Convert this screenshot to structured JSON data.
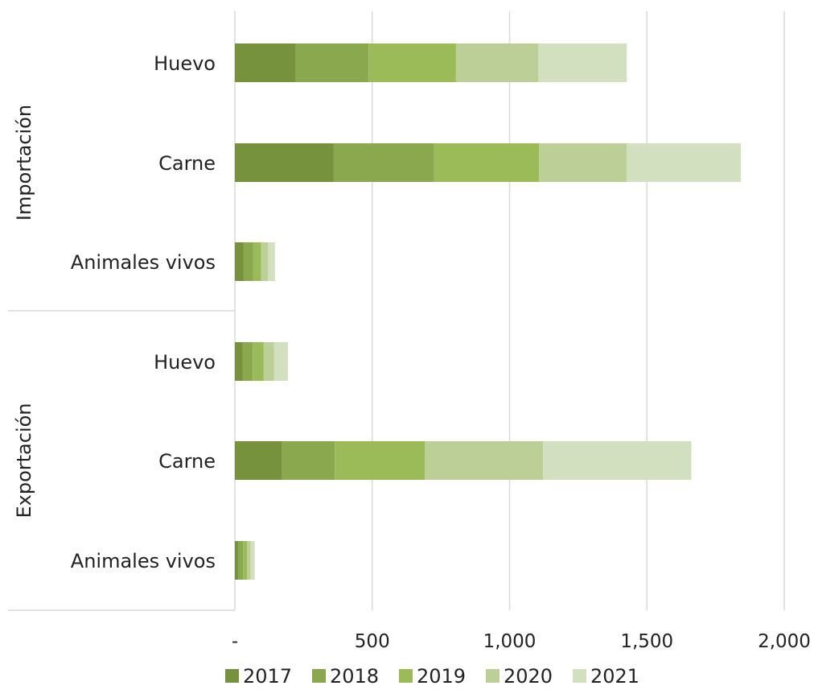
{
  "chart_data": {
    "type": "bar",
    "orientation": "horizontal",
    "stacked": true,
    "groups": [
      {
        "label": "Importación",
        "categories": [
          "Huevo",
          "Carne",
          "Animales vivos"
        ]
      },
      {
        "label": "Exportación",
        "categories": [
          "Huevo",
          "Carne",
          "Animales vivos"
        ]
      }
    ],
    "series": [
      {
        "name": "2017",
        "color": "#76923c",
        "values": [
          222,
          360,
          32,
          28,
          172,
          12
        ]
      },
      {
        "name": "2018",
        "color": "#8aa84e",
        "values": [
          265,
          365,
          35,
          37,
          192,
          18
        ]
      },
      {
        "name": "2019",
        "color": "#9bbb59",
        "values": [
          318,
          382,
          28,
          40,
          328,
          15
        ]
      },
      {
        "name": "2020",
        "color": "#bccf96",
        "values": [
          300,
          320,
          26,
          38,
          430,
          12
        ]
      },
      {
        "name": "2021",
        "color": "#d3e0bf",
        "values": [
          322,
          415,
          25,
          50,
          540,
          15
        ]
      }
    ],
    "xlim": [
      0,
      2000
    ],
    "x_ticks": [
      0,
      500,
      1000,
      1500,
      2000
    ],
    "x_tick_labels": [
      "-",
      "500",
      "1,000",
      "1,500",
      "2,000"
    ],
    "grid": true,
    "legend_position": "bottom"
  }
}
